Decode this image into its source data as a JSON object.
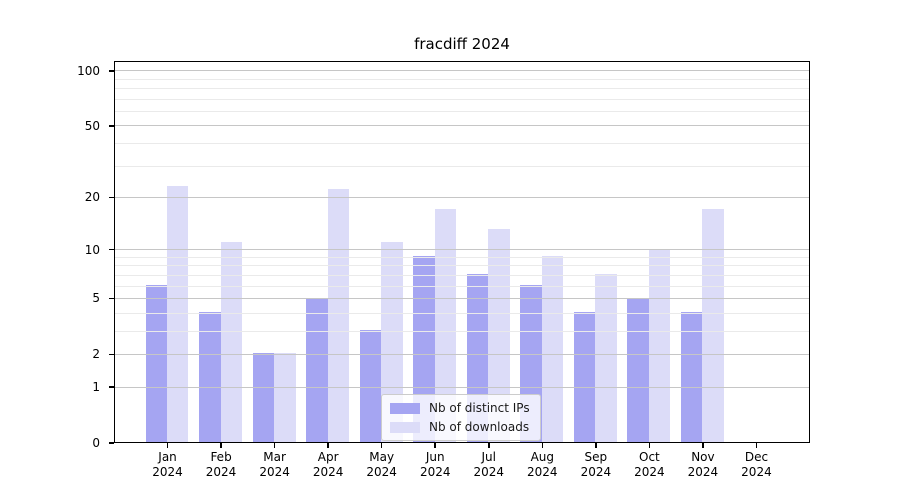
{
  "figure": {
    "title": "fracdiff 2024"
  },
  "chart_data": {
    "type": "bar",
    "title": "fracdiff 2024",
    "categories": [
      "Jan",
      "Feb",
      "Mar",
      "Apr",
      "May",
      "Jun",
      "Jul",
      "Aug",
      "Sep",
      "Oct",
      "Nov",
      "Dec"
    ],
    "category_year": "2024",
    "series": [
      {
        "name": "Nb of distinct IPs",
        "color": "#a5a5f2",
        "values": [
          6,
          4,
          2,
          5,
          3,
          9,
          7,
          6,
          4,
          5,
          4,
          0
        ]
      },
      {
        "name": "Nb of downloads",
        "color": "#dcdcf8",
        "values": [
          23,
          11,
          2,
          22,
          11,
          17,
          13,
          9,
          7,
          10,
          17,
          0
        ]
      }
    ],
    "yscale": "log1p",
    "ylim": [
      0,
      113
    ],
    "yticks": [
      0,
      1,
      2,
      5,
      10,
      20,
      50,
      100
    ],
    "yticks_minor": [
      3,
      4,
      6,
      7,
      8,
      9,
      30,
      40,
      60,
      70,
      80,
      90
    ],
    "grid": true,
    "legend_position": "lower center",
    "colors": {
      "major_grid": "#c6c6c6",
      "minor_grid": "#eaeaea",
      "axis": "#000000",
      "text": "#000000"
    }
  }
}
